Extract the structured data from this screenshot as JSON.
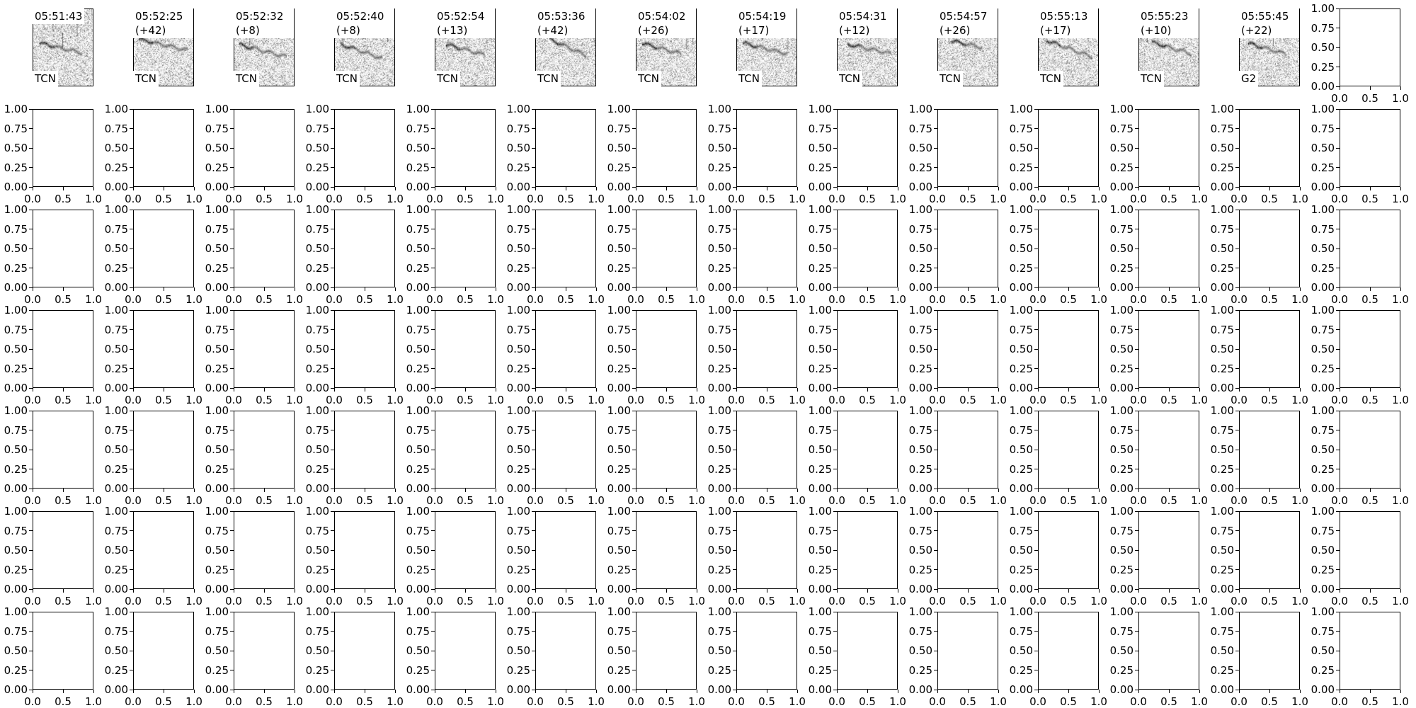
{
  "chart_data": {
    "type": "heatmap",
    "grid": {
      "rows": 7,
      "cols": 14
    },
    "panels": [
      {
        "title": "05:51:43",
        "label": "TCN"
      },
      {
        "title": "05:52:25(+42)",
        "label": "TCN"
      },
      {
        "title": "05:52:32(+8)",
        "label": "TCN"
      },
      {
        "title": "05:52:40(+8)",
        "label": "TCN"
      },
      {
        "title": "05:52:54(+13)",
        "label": "TCN"
      },
      {
        "title": "05:53:36(+42)",
        "label": "TCN"
      },
      {
        "title": "05:54:02(+26)",
        "label": "TCN"
      },
      {
        "title": "05:54:19(+17)",
        "label": "TCN"
      },
      {
        "title": "05:54:31(+12)",
        "label": "TCN"
      },
      {
        "title": "05:54:57(+26)",
        "label": "TCN"
      },
      {
        "title": "05:55:13(+17)",
        "label": "TCN"
      },
      {
        "title": "05:55:23(+10)",
        "label": "TCN"
      },
      {
        "title": "05:55:45(+22)",
        "label": "G2"
      }
    ],
    "panel_colormap": "grayscale (white to black)",
    "empty_axes": {
      "xlim": [
        0,
        1
      ],
      "ylim": [
        0,
        1
      ],
      "xticks": [
        "0.0",
        "0.5",
        "1.0"
      ],
      "yticks": [
        "0.00",
        "0.25",
        "0.50",
        "0.75",
        "1.00"
      ]
    }
  }
}
